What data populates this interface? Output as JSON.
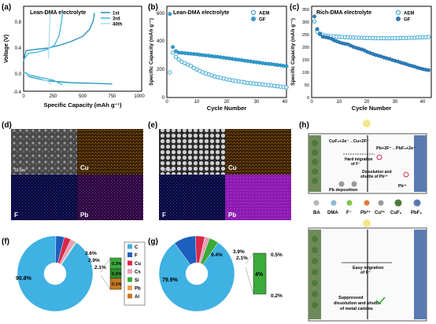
{
  "figure": {
    "panels": {
      "a": {
        "label": "(a)",
        "title": "Lean-DMA electrolyte",
        "xlabel": "Specific Capacity (mAh g⁻¹)",
        "ylabel": "Voltage (V)",
        "xticks": [
          "0",
          "250",
          "500",
          "750",
          "1000"
        ],
        "yticks": [
          "0.8",
          "0.4",
          "0.0",
          "-0.4"
        ],
        "legend": [
          "1st",
          "3rd",
          "40th"
        ],
        "colors": [
          "#1f8fc0",
          "#41b6dd",
          "#a8dcee"
        ]
      },
      "b": {
        "label": "(b)",
        "title": "Lean-DMA electrolyte",
        "xlabel": "Cycle Number",
        "ylabel": "Specific Capacity (mAh g⁻¹)",
        "xticks": [
          "0",
          "10",
          "20",
          "30",
          "40"
        ],
        "yticks": [
          "0",
          "200",
          "400",
          "600"
        ],
        "legend": [
          "AEM",
          "GF"
        ]
      },
      "c": {
        "label": "(c)",
        "title": "Rich-DMA electrolyte",
        "xlabel": "Cycle Number",
        "ylabel": "Specific Capacity (mAh g⁻¹)",
        "xticks": [
          "0",
          "10",
          "20",
          "30",
          "40"
        ],
        "yticks": [
          "0",
          "50",
          "100",
          "150",
          "200",
          "250",
          "300",
          "350"
        ],
        "legend": [
          "AEM",
          "GF"
        ]
      },
      "d": {
        "label": "(d)",
        "scale": "10 μm",
        "maps": [
          "Cu",
          "F",
          "Pb"
        ]
      },
      "e": {
        "label": "(e)",
        "scale": "10 μm",
        "maps": [
          "Cu",
          "F",
          "Pb"
        ]
      },
      "f": {
        "label": "(f)",
        "main": "90.8%",
        "labels": [
          "3.6%",
          "2.9%",
          "2.1%"
        ],
        "bar_labels": [
          "0.3%",
          "0.2%",
          "0.1%"
        ],
        "legend": [
          "C",
          "F",
          "Cu",
          "Cs",
          "Si",
          "Pb",
          "Al"
        ]
      },
      "g": {
        "label": "(g)",
        "main": "79.9%",
        "labels": [
          "9.4%",
          "3.9%",
          "2.1%"
        ],
        "bar_mid": "4%",
        "bar_labels": [
          "0.5%",
          "0.2%"
        ]
      },
      "h": {
        "label": "(h)",
        "reaction1": "CuF₂+2e⁻→Cu+2F⁻",
        "reaction2": "Pb+2F⁻→PbF₂+2e⁻",
        "hard_migration": "Hard migration",
        "of_f": "of F⁻",
        "dissolution1": "Dissolution and",
        "dissolution2": "shuttle of Pb²⁺",
        "pb2": "Pb²⁺",
        "pb_deposition": "Pb deposition",
        "key": [
          "BA",
          "DMA",
          "F⁻",
          "Pb²⁺",
          "Cu²⁺",
          "CuF₂",
          "PbF₂"
        ],
        "easy1": "Easy migration",
        "easy2": "of F⁻",
        "suppressed1": "Suppressed",
        "suppressed2": "dissolution and shuttle",
        "suppressed3": "of metal cations"
      }
    },
    "chart_data": [
      {
        "type": "line",
        "title": "Lean-DMA electrolyte",
        "xlabel": "Specific Capacity (mAh g⁻¹)",
        "ylabel": "Voltage (V)",
        "xlim": [
          0,
          1000
        ],
        "ylim": [
          -0.4,
          0.9
        ],
        "series": [
          {
            "name": "1st",
            "x": [
              0,
              20,
              100,
              200,
              300,
              400,
              500,
              560,
              590,
              600
            ],
            "y": [
              0.06,
              0.22,
              0.24,
              0.26,
              0.3,
              0.36,
              0.44,
              0.55,
              0.68,
              0.8
            ]
          },
          {
            "name": "3rd",
            "x": [
              0,
              40,
              120,
              200,
              260,
              300,
              320,
              330
            ],
            "y": [
              0.08,
              0.18,
              0.2,
              0.24,
              0.3,
              0.45,
              0.65,
              0.8
            ]
          },
          {
            "name": "40th",
            "x": [
              210,
              215,
              220,
              222,
              225
            ],
            "y": [
              0.1,
              0.3,
              0.55,
              0.7,
              0.8
            ]
          },
          {
            "name": "1st",
            "x": [
              0,
              50,
              200,
              400,
              600,
              750
            ],
            "y": [
              -0.1,
              -0.18,
              -0.24,
              -0.27,
              -0.28,
              -0.29
            ]
          },
          {
            "name": "3rd",
            "x": [
              0,
              50,
              150,
              250,
              330
            ],
            "y": [
              -0.1,
              -0.15,
              -0.19,
              -0.23,
              -0.3
            ]
          },
          {
            "name": "40th",
            "x": [
              0,
              60,
              150,
              210,
              230
            ],
            "y": [
              -0.12,
              -0.17,
              -0.21,
              -0.25,
              -0.3
            ]
          }
        ]
      },
      {
        "type": "scatter",
        "title": "Lean-DMA electrolyte",
        "xlabel": "Cycle Number",
        "ylabel": "Specific Capacity (mAh g⁻¹)",
        "xlim": [
          0,
          40
        ],
        "ylim": [
          0,
          650
        ],
        "series": [
          {
            "name": "AEM",
            "x": [
              1,
              2,
              3,
              4,
              5,
              6,
              7,
              8,
              9,
              10,
              11,
              12,
              13,
              14,
              15,
              16,
              17,
              18,
              19,
              20,
              21,
              22,
              23,
              24,
              25,
              26,
              27,
              28,
              29,
              30,
              31,
              32,
              33,
              34,
              35,
              36,
              37,
              38,
              39,
              40
            ],
            "y": [
              180,
              320,
              290,
              270,
              255,
              245,
              235,
              225,
              212,
              200,
              190,
              180,
              172,
              165,
              158,
              150,
              145,
              140,
              135,
              130,
              126,
              122,
              118,
              115,
              112,
              108,
              105,
              102,
              100,
              98,
              95,
              93,
              90,
              88,
              85,
              83,
              80,
              78,
              75,
              73
            ]
          },
          {
            "name": "GF",
            "x": [
              1,
              2,
              3,
              4,
              5,
              6,
              7,
              8,
              9,
              10,
              11,
              12,
              13,
              14,
              15,
              16,
              17,
              18,
              19,
              20,
              21,
              22,
              23,
              24,
              25,
              26,
              27,
              28,
              29,
              30,
              31,
              32,
              33,
              34,
              35,
              36,
              37,
              38,
              39,
              40
            ],
            "y": [
              595,
              360,
              330,
              320,
              318,
              316,
              314,
              312,
              310,
              308,
              305,
              302,
              300,
              298,
              295,
              292,
              290,
              287,
              284,
              281,
              278,
              275,
              272,
              269,
              266,
              263,
              260,
              257,
              254,
              251,
              248,
              245,
              242,
              240,
              238,
              235,
              232,
              229,
              226,
              223
            ]
          }
        ]
      },
      {
        "type": "scatter",
        "title": "Rich-DMA electrolyte",
        "xlabel": "Cycle Number",
        "ylabel": "Specific Capacity (mAh g⁻¹)",
        "xlim": [
          0,
          43
        ],
        "ylim": [
          0,
          360
        ],
        "series": [
          {
            "name": "AEM",
            "x": [
              1,
              2,
              3,
              4,
              5,
              6,
              7,
              8,
              9,
              10,
              11,
              12,
              13,
              14,
              15,
              16,
              17,
              18,
              19,
              20,
              21,
              22,
              23,
              24,
              25,
              26,
              27,
              28,
              29,
              30,
              31,
              32,
              33,
              34,
              35,
              36,
              37,
              38,
              39,
              40,
              41,
              42
            ],
            "y": [
              300,
              260,
              252,
              248,
              245,
              243,
              242,
              241,
              240,
              240,
              239,
              238,
              238,
              237,
              237,
              236,
              236,
              236,
              235,
              235,
              235,
              235,
              234,
              234,
              234,
              234,
              234,
              234,
              234,
              234,
              234,
              235,
              235,
              235,
              236,
              236,
              236,
              237,
              237,
              238,
              238,
              239
            ]
          },
          {
            "name": "GF",
            "x": [
              1,
              2,
              3,
              4,
              5,
              6,
              7,
              8,
              9,
              10,
              11,
              12,
              13,
              14,
              15,
              16,
              17,
              18,
              19,
              20,
              21,
              22,
              23,
              24,
              25,
              26,
              27,
              28,
              29,
              30,
              31,
              32,
              33,
              34,
              35,
              36,
              37,
              38,
              39,
              40,
              41,
              42
            ],
            "y": [
              320,
              270,
              250,
              240,
              238,
              236,
              232,
              226,
              222,
              218,
              214,
              212,
              210,
              205,
              200,
              196,
              193,
              190,
              186,
              180,
              176,
              172,
              168,
              165,
              162,
              158,
              155,
              152,
              148,
              145,
              142,
              138,
              135,
              132,
              128,
              125,
              122,
              118,
              115,
              112,
              110,
              108
            ]
          }
        ]
      },
      {
        "type": "pie",
        "values": [
          90.8,
          3.6,
          2.9,
          2.1,
          0.3,
          0.2,
          0.1
        ],
        "labels": [
          "90.8%",
          "3.6%",
          "2.9%",
          "2.1%",
          "0.3%",
          "0.2%",
          "0.1%"
        ],
        "legend": [
          "C",
          "F",
          "Cu",
          "Cs",
          "Si",
          "Pb",
          "Al"
        ],
        "colors": [
          "#3fb1e3",
          "#1d5fbf",
          "#d9284a",
          "#e8a0b4",
          "#3aaa3a",
          "#f0a050",
          "#c87820"
        ]
      },
      {
        "type": "pie",
        "values": [
          79.9,
          9.4,
          3.9,
          2.1,
          4
        ],
        "labels": [
          "79.9%",
          "9.4%",
          "3.9%",
          "2.1%",
          "4%"
        ],
        "colors": [
          "#3fb1e3",
          "#1d5fbf",
          "#d9284a",
          "#e8a0b4",
          "#3aaa3a"
        ]
      }
    ]
  }
}
